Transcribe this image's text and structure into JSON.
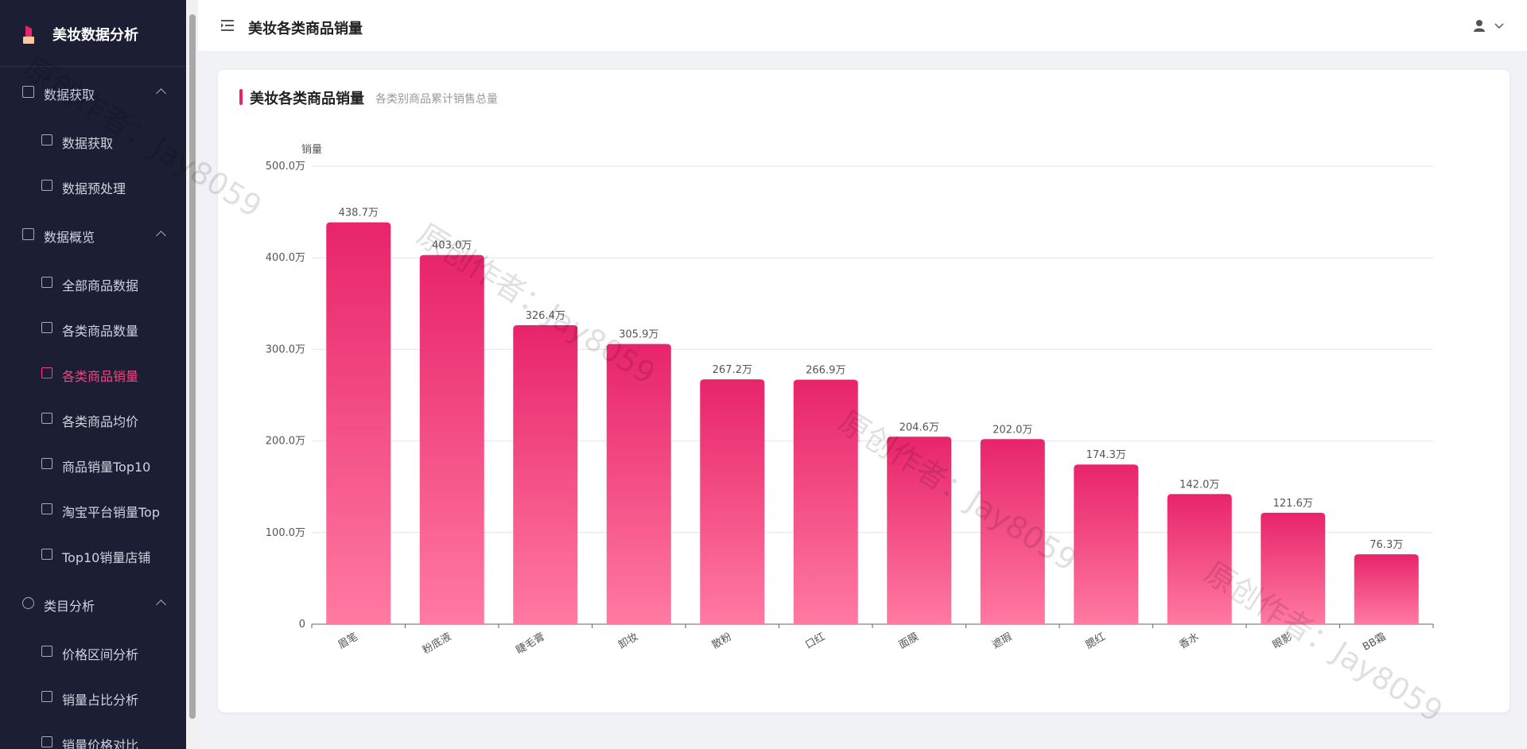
{
  "brand": "美妆数据分析",
  "menu": [
    {
      "title": "数据获取",
      "items": [
        "数据获取",
        "数据预处理"
      ]
    },
    {
      "title": "数据概览",
      "items": [
        "全部商品数据",
        "各类商品数量",
        "各类商品销量",
        "各类商品均价",
        "商品销量Top10",
        "淘宝平台销量Top",
        "Top10销量店铺"
      ]
    },
    {
      "title": "类目分析",
      "items": [
        "价格区间分析",
        "销量占比分析",
        "销量价格对比"
      ]
    }
  ],
  "header": {
    "title": "美妆各类商品销量"
  },
  "card": {
    "title": "美妆各类商品销量",
    "subtitle": "各类别商品累计销售总量"
  },
  "watermark": "原创作者：Jay8059",
  "chart_data": {
    "type": "bar",
    "y_label": "销量",
    "categories": [
      "眉笔",
      "粉底液",
      "睫毛膏",
      "卸妆",
      "散粉",
      "口红",
      "面膜",
      "遮瑕",
      "腮红",
      "香水",
      "眼影",
      "BB霜"
    ],
    "values": [
      438.7,
      403.0,
      326.4,
      305.9,
      267.2,
      266.9,
      204.6,
      202.0,
      174.3,
      142.0,
      121.6,
      76.3
    ],
    "value_labels": [
      "438.7万",
      "403.0万",
      "326.4万",
      "305.9万",
      "267.2万",
      "266.9万",
      "204.6万",
      "202.0万",
      "174.3万",
      "142.0万",
      "121.6万",
      "76.3万"
    ],
    "color": "#e8246a",
    "color_bottom": "#ff7aa2",
    "ylim": [
      0,
      500
    ],
    "yticks": [
      0,
      {
        "value": 100,
        "label": "100.0万"
      },
      {
        "value": 200,
        "label": "200.0万"
      },
      {
        "value": 300,
        "label": "300.0万"
      },
      {
        "value": 400,
        "label": "400.0万"
      },
      {
        "value": 500,
        "label": "500.0万"
      }
    ],
    "grid": true
  }
}
